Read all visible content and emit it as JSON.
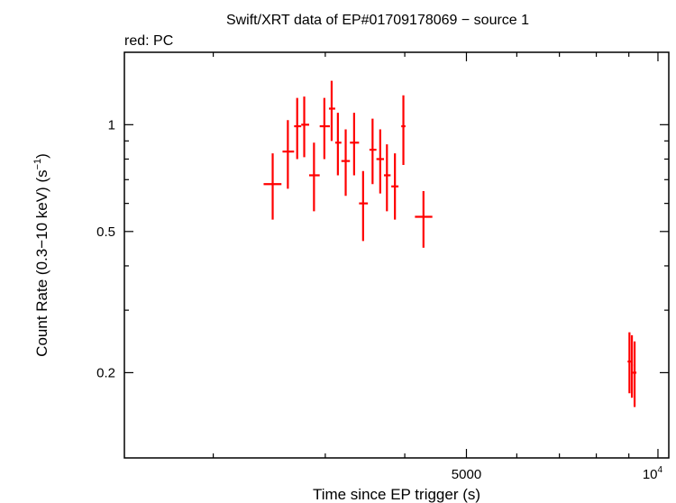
{
  "chart_data": {
    "type": "scatter",
    "title": "Swift/XRT data of EP#01709178069 − source 1",
    "subtitle": "red: PC",
    "xlabel": "Time since EP trigger (s)",
    "ylabel_main": "Count Rate (0.3−10 keV) (s",
    "ylabel_sup": "−1",
    "ylabel_close": ")",
    "xscale": "log",
    "yscale": "log",
    "xlim": [
      1450,
      10400
    ],
    "ylim": [
      0.115,
      1.6
    ],
    "xticks": [
      {
        "value": 5000,
        "label": "5000"
      },
      {
        "value": 10000,
        "label": "10",
        "sup": "4"
      }
    ],
    "xminor": [
      2000,
      3000,
      4000,
      6000,
      7000,
      8000,
      9000
    ],
    "yticks": [
      {
        "value": 0.2,
        "label": "0.2"
      },
      {
        "value": 0.5,
        "label": "0.5"
      },
      {
        "value": 1,
        "label": "1"
      }
    ],
    "yminor": [
      0.3,
      0.4,
      0.6,
      0.7,
      0.8,
      0.9
    ],
    "grid": false,
    "series": [
      {
        "color": "#ff0000",
        "points": [
          {
            "x": 2480,
            "xerr": [
              2400,
              2560
            ],
            "y": 0.68,
            "yerr": [
              0.54,
              0.83
            ]
          },
          {
            "x": 2620,
            "xerr": [
              2570,
              2680
            ],
            "y": 0.84,
            "yerr": [
              0.66,
              1.03
            ]
          },
          {
            "x": 2710,
            "xerr": [
              2680,
              2750
            ],
            "y": 0.99,
            "yerr": [
              0.8,
              1.19
            ]
          },
          {
            "x": 2780,
            "xerr": [
              2750,
              2830
            ],
            "y": 1.0,
            "yerr": [
              0.81,
              1.2
            ]
          },
          {
            "x": 2880,
            "xerr": [
              2830,
              2940
            ],
            "y": 0.72,
            "yerr": [
              0.57,
              0.89
            ]
          },
          {
            "x": 2990,
            "xerr": [
              2940,
              3050
            ],
            "y": 0.99,
            "yerr": [
              0.8,
              1.19
            ]
          },
          {
            "x": 3070,
            "xerr": [
              3040,
              3110
            ],
            "y": 1.11,
            "yerr": [
              0.9,
              1.33
            ]
          },
          {
            "x": 3140,
            "xerr": [
              3110,
              3180
            ],
            "y": 0.89,
            "yerr": [
              0.72,
              1.08
            ]
          },
          {
            "x": 3230,
            "xerr": [
              3180,
              3280
            ],
            "y": 0.79,
            "yerr": [
              0.63,
              0.97
            ]
          },
          {
            "x": 3330,
            "xerr": [
              3280,
              3390
            ],
            "y": 0.89,
            "yerr": [
              0.72,
              1.08
            ]
          },
          {
            "x": 3440,
            "xerr": [
              3390,
              3500
            ],
            "y": 0.6,
            "yerr": [
              0.47,
              0.74
            ]
          },
          {
            "x": 3560,
            "xerr": [
              3520,
              3610
            ],
            "y": 0.85,
            "yerr": [
              0.68,
              1.04
            ]
          },
          {
            "x": 3660,
            "xerr": [
              3610,
              3710
            ],
            "y": 0.8,
            "yerr": [
              0.64,
              0.97
            ]
          },
          {
            "x": 3750,
            "xerr": [
              3710,
              3800
            ],
            "y": 0.72,
            "yerr": [
              0.57,
              0.88
            ]
          },
          {
            "x": 3860,
            "xerr": [
              3810,
              3910
            ],
            "y": 0.67,
            "yerr": [
              0.54,
              0.83
            ]
          },
          {
            "x": 3980,
            "xerr": [
              3950,
              4010
            ],
            "y": 0.99,
            "yerr": [
              0.77,
              1.21
            ]
          },
          {
            "x": 4280,
            "xerr": [
              4150,
              4420
            ],
            "y": 0.55,
            "yerr": [
              0.45,
              0.65
            ]
          },
          {
            "x": 9020,
            "xerr": [
              8960,
              9070
            ],
            "y": 0.215,
            "yerr": [
              0.175,
              0.26
            ]
          },
          {
            "x": 9100,
            "xerr": [
              9070,
              9130
            ],
            "y": 0.21,
            "yerr": [
              0.17,
              0.255
            ]
          },
          {
            "x": 9190,
            "xerr": [
              9130,
              9250
            ],
            "y": 0.2,
            "yerr": [
              0.16,
              0.245
            ]
          }
        ]
      }
    ]
  }
}
